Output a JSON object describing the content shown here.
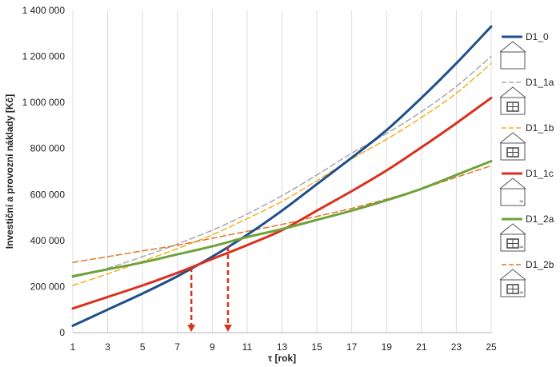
{
  "chart_data": {
    "type": "line",
    "xlabel": "τ [rok]",
    "ylabel": "Investiční a provozní náklady [Kč]",
    "xlim": [
      1,
      25
    ],
    "ylim": [
      0,
      1400000
    ],
    "grid": "vertical",
    "legend_position": "right",
    "x_ticks": [
      "1",
      "3",
      "5",
      "7",
      "9",
      "11",
      "13",
      "15",
      "17",
      "19",
      "21",
      "23",
      "25"
    ],
    "y_ticks": [
      "0",
      "200 000",
      "400 000",
      "600 000",
      "800 000",
      "1 000 000",
      "1 200 000",
      "1 400 000"
    ],
    "x": [
      1,
      3,
      5,
      7,
      9,
      11,
      13,
      15,
      17,
      19,
      21,
      23,
      25
    ],
    "series": [
      {
        "name": "D1_0",
        "color": "#1f4e8c",
        "dash": "solid",
        "width": 3,
        "values": [
          30000,
          100000,
          170000,
          245000,
          330000,
          425000,
          530000,
          645000,
          760000,
          880000,
          1020000,
          1170000,
          1330000
        ]
      },
      {
        "name": "D1_1a",
        "color": "#a8a8a8",
        "dash": "dashed",
        "width": 1.5,
        "values": [
          240000,
          280000,
          330000,
          385000,
          445000,
          515000,
          595000,
          685000,
          780000,
          865000,
          960000,
          1070000,
          1200000
        ]
      },
      {
        "name": "D1_1b",
        "color": "#f2b01e",
        "dash": "dashed",
        "width": 1.5,
        "values": [
          205000,
          255000,
          310000,
          365000,
          425000,
          495000,
          570000,
          660000,
          755000,
          840000,
          935000,
          1040000,
          1170000
        ]
      },
      {
        "name": "D1_1c",
        "color": "#d9311d",
        "dash": "solid",
        "width": 3,
        "values": [
          105000,
          155000,
          205000,
          260000,
          320000,
          380000,
          445000,
          530000,
          615000,
          705000,
          805000,
          910000,
          1020000
        ]
      },
      {
        "name": "D1_2a",
        "color": "#6ea33a",
        "dash": "solid",
        "width": 3,
        "values": [
          245000,
          275000,
          305000,
          340000,
          375000,
          415000,
          450000,
          490000,
          530000,
          575000,
          625000,
          685000,
          745000
        ]
      },
      {
        "name": "D1_2b",
        "color": "#e2752c",
        "dash": "dashed",
        "width": 1.5,
        "values": [
          305000,
          330000,
          355000,
          380000,
          410000,
          440000,
          470000,
          505000,
          540000,
          580000,
          625000,
          675000,
          725000
        ]
      }
    ],
    "markers": [
      {
        "x": 7.8,
        "y": 285000,
        "color": "#d9311d"
      },
      {
        "x": 9.9,
        "y": 375000,
        "color": "#d9311d"
      }
    ]
  }
}
